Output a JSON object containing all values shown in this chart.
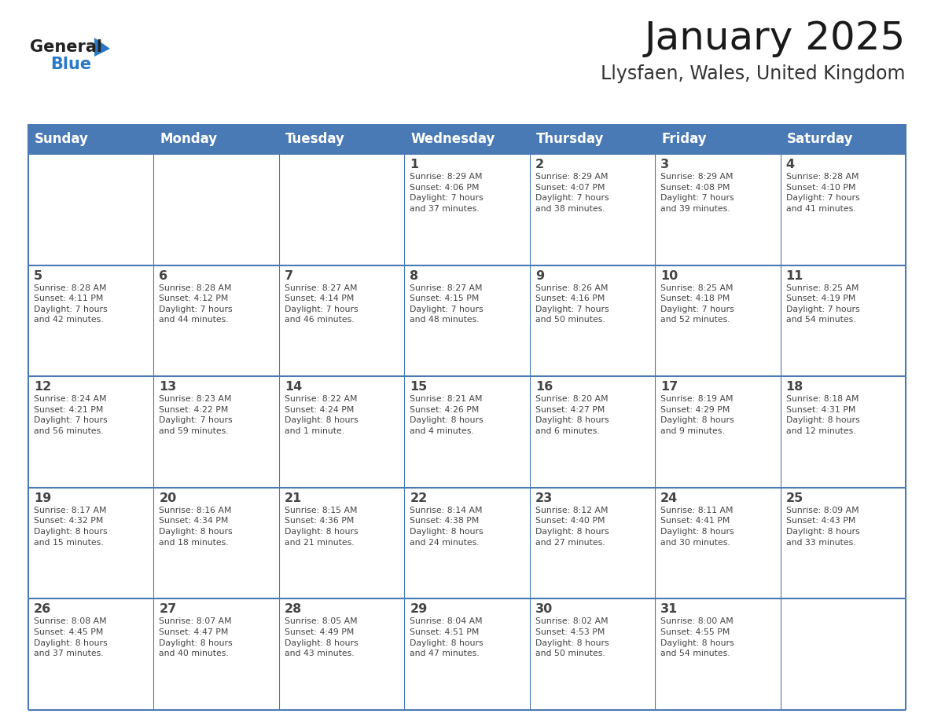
{
  "title": "January 2025",
  "subtitle": "Llysfaen, Wales, United Kingdom",
  "days_of_week": [
    "Sunday",
    "Monday",
    "Tuesday",
    "Wednesday",
    "Thursday",
    "Friday",
    "Saturday"
  ],
  "header_bg": "#4a7ab5",
  "header_text": "#ffffff",
  "cell_bg_white": "#ffffff",
  "grid_color": "#4a7ab5",
  "text_color": "#444444",
  "title_color": "#1a1a1a",
  "subtitle_color": "#333333",
  "logo_general_color": "#222222",
  "logo_blue_color": "#2a78c8",
  "weeks": [
    {
      "days": [
        {
          "day": null,
          "info": null
        },
        {
          "day": null,
          "info": null
        },
        {
          "day": null,
          "info": null
        },
        {
          "day": 1,
          "info": "Sunrise: 8:29 AM\nSunset: 4:06 PM\nDaylight: 7 hours\nand 37 minutes."
        },
        {
          "day": 2,
          "info": "Sunrise: 8:29 AM\nSunset: 4:07 PM\nDaylight: 7 hours\nand 38 minutes."
        },
        {
          "day": 3,
          "info": "Sunrise: 8:29 AM\nSunset: 4:08 PM\nDaylight: 7 hours\nand 39 minutes."
        },
        {
          "day": 4,
          "info": "Sunrise: 8:28 AM\nSunset: 4:10 PM\nDaylight: 7 hours\nand 41 minutes."
        }
      ]
    },
    {
      "days": [
        {
          "day": 5,
          "info": "Sunrise: 8:28 AM\nSunset: 4:11 PM\nDaylight: 7 hours\nand 42 minutes."
        },
        {
          "day": 6,
          "info": "Sunrise: 8:28 AM\nSunset: 4:12 PM\nDaylight: 7 hours\nand 44 minutes."
        },
        {
          "day": 7,
          "info": "Sunrise: 8:27 AM\nSunset: 4:14 PM\nDaylight: 7 hours\nand 46 minutes."
        },
        {
          "day": 8,
          "info": "Sunrise: 8:27 AM\nSunset: 4:15 PM\nDaylight: 7 hours\nand 48 minutes."
        },
        {
          "day": 9,
          "info": "Sunrise: 8:26 AM\nSunset: 4:16 PM\nDaylight: 7 hours\nand 50 minutes."
        },
        {
          "day": 10,
          "info": "Sunrise: 8:25 AM\nSunset: 4:18 PM\nDaylight: 7 hours\nand 52 minutes."
        },
        {
          "day": 11,
          "info": "Sunrise: 8:25 AM\nSunset: 4:19 PM\nDaylight: 7 hours\nand 54 minutes."
        }
      ]
    },
    {
      "days": [
        {
          "day": 12,
          "info": "Sunrise: 8:24 AM\nSunset: 4:21 PM\nDaylight: 7 hours\nand 56 minutes."
        },
        {
          "day": 13,
          "info": "Sunrise: 8:23 AM\nSunset: 4:22 PM\nDaylight: 7 hours\nand 59 minutes."
        },
        {
          "day": 14,
          "info": "Sunrise: 8:22 AM\nSunset: 4:24 PM\nDaylight: 8 hours\nand 1 minute."
        },
        {
          "day": 15,
          "info": "Sunrise: 8:21 AM\nSunset: 4:26 PM\nDaylight: 8 hours\nand 4 minutes."
        },
        {
          "day": 16,
          "info": "Sunrise: 8:20 AM\nSunset: 4:27 PM\nDaylight: 8 hours\nand 6 minutes."
        },
        {
          "day": 17,
          "info": "Sunrise: 8:19 AM\nSunset: 4:29 PM\nDaylight: 8 hours\nand 9 minutes."
        },
        {
          "day": 18,
          "info": "Sunrise: 8:18 AM\nSunset: 4:31 PM\nDaylight: 8 hours\nand 12 minutes."
        }
      ]
    },
    {
      "days": [
        {
          "day": 19,
          "info": "Sunrise: 8:17 AM\nSunset: 4:32 PM\nDaylight: 8 hours\nand 15 minutes."
        },
        {
          "day": 20,
          "info": "Sunrise: 8:16 AM\nSunset: 4:34 PM\nDaylight: 8 hours\nand 18 minutes."
        },
        {
          "day": 21,
          "info": "Sunrise: 8:15 AM\nSunset: 4:36 PM\nDaylight: 8 hours\nand 21 minutes."
        },
        {
          "day": 22,
          "info": "Sunrise: 8:14 AM\nSunset: 4:38 PM\nDaylight: 8 hours\nand 24 minutes."
        },
        {
          "day": 23,
          "info": "Sunrise: 8:12 AM\nSunset: 4:40 PM\nDaylight: 8 hours\nand 27 minutes."
        },
        {
          "day": 24,
          "info": "Sunrise: 8:11 AM\nSunset: 4:41 PM\nDaylight: 8 hours\nand 30 minutes."
        },
        {
          "day": 25,
          "info": "Sunrise: 8:09 AM\nSunset: 4:43 PM\nDaylight: 8 hours\nand 33 minutes."
        }
      ]
    },
    {
      "days": [
        {
          "day": 26,
          "info": "Sunrise: 8:08 AM\nSunset: 4:45 PM\nDaylight: 8 hours\nand 37 minutes."
        },
        {
          "day": 27,
          "info": "Sunrise: 8:07 AM\nSunset: 4:47 PM\nDaylight: 8 hours\nand 40 minutes."
        },
        {
          "day": 28,
          "info": "Sunrise: 8:05 AM\nSunset: 4:49 PM\nDaylight: 8 hours\nand 43 minutes."
        },
        {
          "day": 29,
          "info": "Sunrise: 8:04 AM\nSunset: 4:51 PM\nDaylight: 8 hours\nand 47 minutes."
        },
        {
          "day": 30,
          "info": "Sunrise: 8:02 AM\nSunset: 4:53 PM\nDaylight: 8 hours\nand 50 minutes."
        },
        {
          "day": 31,
          "info": "Sunrise: 8:00 AM\nSunset: 4:55 PM\nDaylight: 8 hours\nand 54 minutes."
        },
        {
          "day": null,
          "info": null
        }
      ]
    }
  ]
}
